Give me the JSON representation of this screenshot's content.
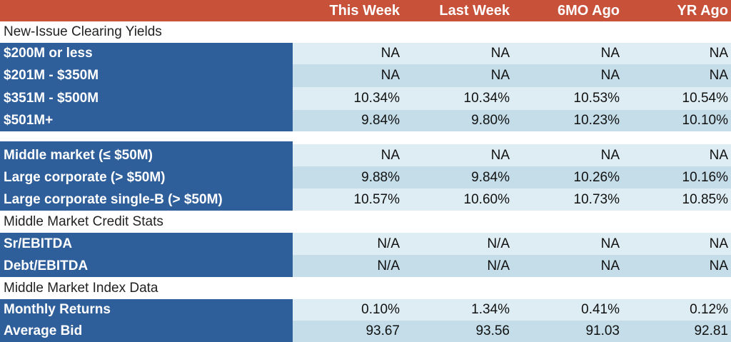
{
  "header": {
    "columns": [
      "This Week",
      "Last Week",
      "6MO Ago",
      "YR Ago"
    ]
  },
  "sections": [
    {
      "title": "New-Issue Clearing Yields",
      "groups": [
        [
          {
            "label": "$200M or less",
            "values": [
              "NA",
              "NA",
              "NA",
              "NA"
            ]
          },
          {
            "label": "$201M - $350M",
            "values": [
              "NA",
              "NA",
              "NA",
              "NA"
            ]
          },
          {
            "label": "$351M - $500M",
            "values": [
              "10.34%",
              "10.34%",
              "10.53%",
              "10.54%"
            ]
          },
          {
            "label": "$501M+",
            "values": [
              "9.84%",
              "9.80%",
              "10.23%",
              "10.10%"
            ]
          }
        ],
        [
          {
            "label": "Middle market (≤ $50M)",
            "values": [
              "NA",
              "NA",
              "NA",
              "NA"
            ]
          },
          {
            "label": "Large corporate (> $50M)",
            "values": [
              "9.88%",
              "9.84%",
              "10.26%",
              "10.16%"
            ]
          },
          {
            "label": "Large corporate single-B (> $50M)",
            "values": [
              "10.57%",
              "10.60%",
              "10.73%",
              "10.85%"
            ]
          }
        ]
      ]
    },
    {
      "title": "Middle Market Credit Stats",
      "groups": [
        [
          {
            "label": "Sr/EBITDA",
            "values": [
              "N/A",
              "N/A",
              "NA",
              "NA"
            ]
          },
          {
            "label": "Debt/EBITDA",
            "values": [
              "N/A",
              "N/A",
              "NA",
              "NA"
            ]
          }
        ]
      ]
    },
    {
      "title": "Middle Market Index Data",
      "groups": [
        [
          {
            "label": "Monthly Returns",
            "values": [
              "0.10%",
              "1.34%",
              "0.41%",
              "0.12%"
            ]
          },
          {
            "label": "Average Bid",
            "values": [
              "93.67",
              "93.56",
              "91.03",
              "92.81"
            ]
          }
        ]
      ]
    }
  ]
}
